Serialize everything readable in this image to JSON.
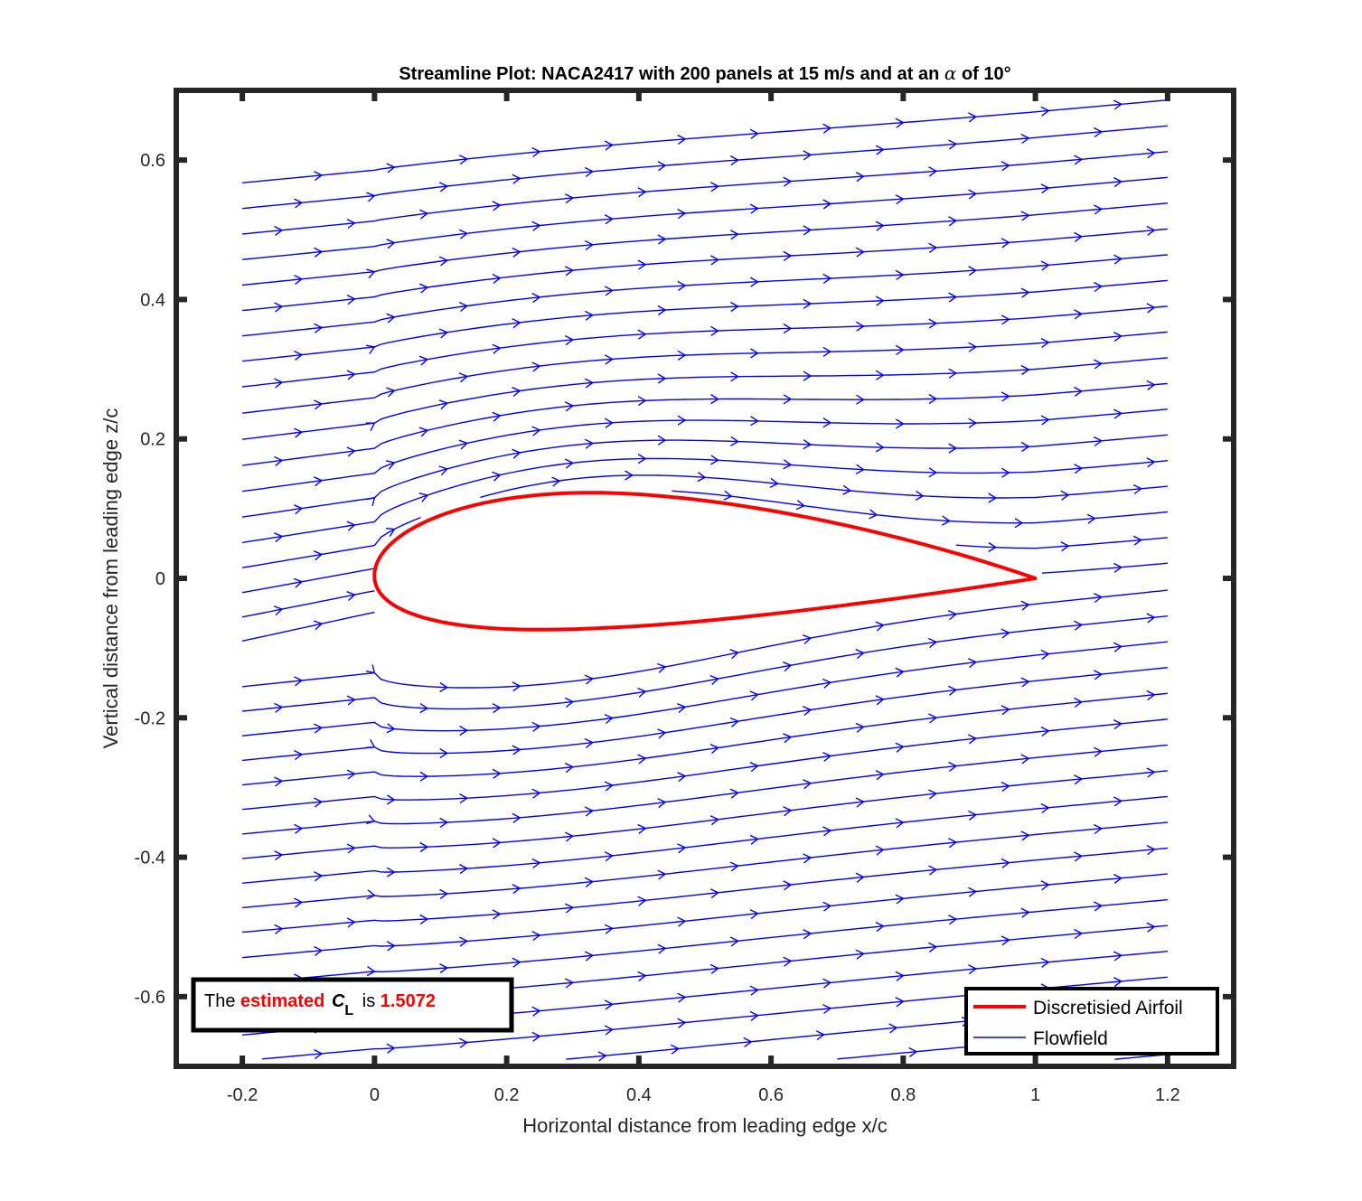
{
  "chart_data": {
    "type": "line",
    "title": {
      "prefix": "Streamline Plot: NACA2417 with 200 panels at 15 m/s and at an ",
      "alpha_symbol": "α",
      "suffix": " of 10°"
    },
    "xlabel": "Horizontal distance from leading edge x/c",
    "ylabel": "Vertical distance from leading edge  z/c",
    "xlim": [
      -0.3,
      1.3
    ],
    "ylim": [
      -0.7,
      0.7
    ],
    "xticks": [
      -0.2,
      0,
      0.2,
      0.4,
      0.6,
      0.8,
      1,
      1.2
    ],
    "xtick_labels": [
      "-0.2",
      "0",
      "0.2",
      "0.4",
      "0.6",
      "0.8",
      "1",
      "1.2"
    ],
    "yticks": [
      -0.6,
      -0.4,
      -0.2,
      0,
      0.2,
      0.4,
      0.6
    ],
    "ytick_labels": [
      "-0.6",
      "-0.4",
      "-0.2",
      "0",
      "0.2",
      "0.4",
      "0.6"
    ],
    "grid": false,
    "legend_position": "bottom-right",
    "series": [
      {
        "name": "Discretisied Airfoil",
        "color": "#ff0000",
        "kind": "naca-2417-outline",
        "chord": 1.0,
        "alpha_deg": 10
      },
      {
        "name": "Flowfield",
        "color": "#0000ff",
        "kind": "streamlines",
        "x_range": [
          -0.2,
          1.2
        ],
        "freestream_ms": 15
      }
    ],
    "annotation": {
      "the": "The",
      "estimated": "estimated",
      "c": "C",
      "sub": "L",
      "is": "is",
      "value": "1.5072",
      "position": "bottom-left"
    },
    "colors": {
      "airfoil": "#ff0000",
      "flow": "#0000ff",
      "highlight": "#ff0000",
      "frame": "#262626"
    }
  }
}
